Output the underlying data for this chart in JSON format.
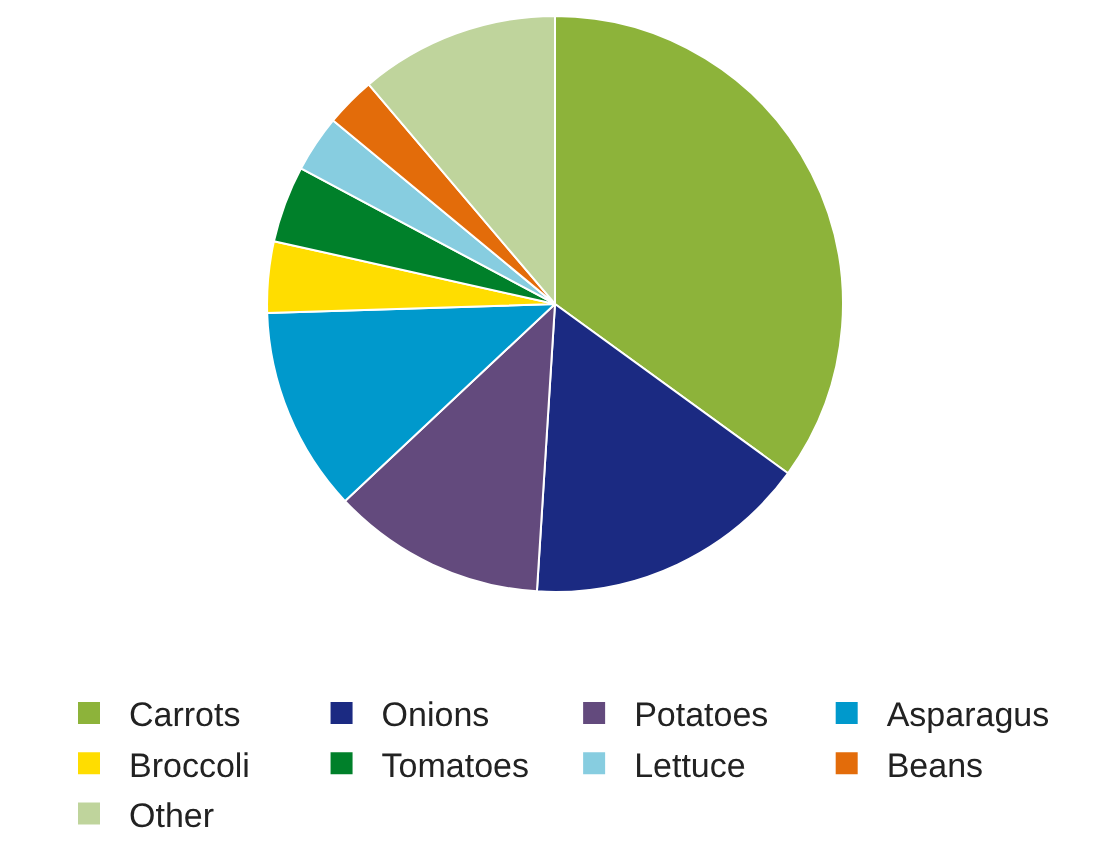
{
  "chart_data": {
    "type": "pie",
    "categories": [
      "Carrots",
      "Onions",
      "Potatoes",
      "Asparagus",
      "Broccoli",
      "Tomatoes",
      "Lettuce",
      "Beans",
      "Other"
    ],
    "values": [
      35,
      16,
      12,
      11.5,
      4,
      4.3,
      3.2,
      2.8,
      11.2
    ],
    "colors": [
      "#8db33a",
      "#1b2a82",
      "#634a7d",
      "#0099cc",
      "#ffdd00",
      "#00802a",
      "#87cde0",
      "#e36c0a",
      "#bfd49c"
    ],
    "legend": "bottom"
  }
}
